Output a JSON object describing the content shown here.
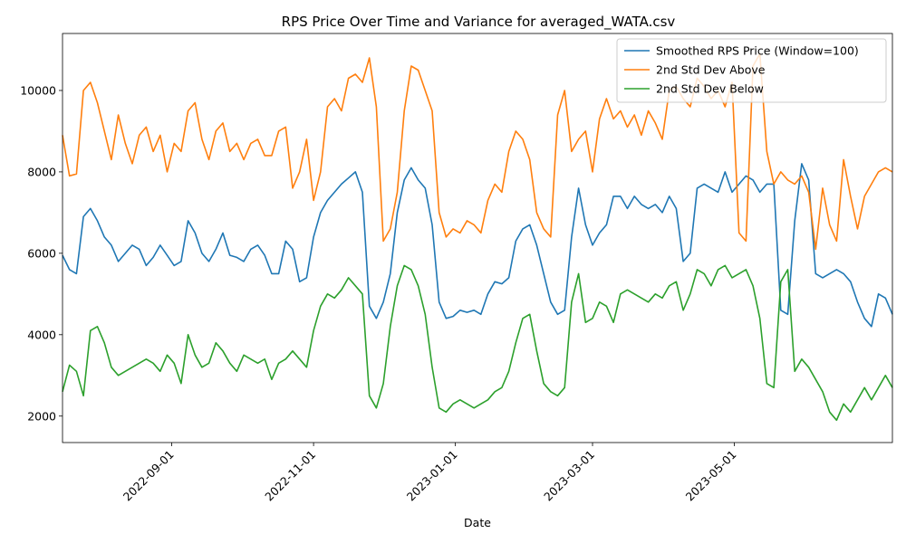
{
  "chart_data": {
    "type": "line",
    "title": "RPS Price Over Time and Variance for averaged_WATA.csv",
    "xlabel": "Date",
    "ylabel": "",
    "x_type": "date",
    "xlim": [
      "2022-07-16",
      "2023-07-08"
    ],
    "ylim": [
      1350,
      11400
    ],
    "xticks": [
      "2022-09-01",
      "2022-11-01",
      "2023-01-01",
      "2023-03-01",
      "2023-05-01"
    ],
    "yticks": [
      2000,
      4000,
      6000,
      8000,
      10000
    ],
    "grid": false,
    "legend_position": "top-right",
    "x": [
      "2022-07-16",
      "2022-07-19",
      "2022-07-22",
      "2022-07-25",
      "2022-07-28",
      "2022-07-31",
      "2022-08-03",
      "2022-08-06",
      "2022-08-09",
      "2022-08-12",
      "2022-08-15",
      "2022-08-18",
      "2022-08-21",
      "2022-08-24",
      "2022-08-27",
      "2022-08-30",
      "2022-09-02",
      "2022-09-05",
      "2022-09-08",
      "2022-09-11",
      "2022-09-14",
      "2022-09-17",
      "2022-09-20",
      "2022-09-23",
      "2022-09-26",
      "2022-09-29",
      "2022-10-02",
      "2022-10-05",
      "2022-10-08",
      "2022-10-11",
      "2022-10-14",
      "2022-10-17",
      "2022-10-20",
      "2022-10-23",
      "2022-10-26",
      "2022-10-29",
      "2022-11-01",
      "2022-11-04",
      "2022-11-07",
      "2022-11-10",
      "2022-11-13",
      "2022-11-16",
      "2022-11-19",
      "2022-11-22",
      "2022-11-25",
      "2022-11-28",
      "2022-12-01",
      "2022-12-04",
      "2022-12-07",
      "2022-12-10",
      "2022-12-13",
      "2022-12-16",
      "2022-12-19",
      "2022-12-22",
      "2022-12-25",
      "2022-12-28",
      "2022-12-31",
      "2023-01-03",
      "2023-01-06",
      "2023-01-09",
      "2023-01-12",
      "2023-01-15",
      "2023-01-18",
      "2023-01-21",
      "2023-01-24",
      "2023-01-27",
      "2023-01-30",
      "2023-02-02",
      "2023-02-05",
      "2023-02-08",
      "2023-02-11",
      "2023-02-14",
      "2023-02-17",
      "2023-02-20",
      "2023-02-23",
      "2023-02-26",
      "2023-03-01",
      "2023-03-04",
      "2023-03-07",
      "2023-03-10",
      "2023-03-13",
      "2023-03-16",
      "2023-03-19",
      "2023-03-22",
      "2023-03-25",
      "2023-03-28",
      "2023-03-31",
      "2023-04-03",
      "2023-04-06",
      "2023-04-09",
      "2023-04-12",
      "2023-04-15",
      "2023-04-18",
      "2023-04-21",
      "2023-04-24",
      "2023-04-27",
      "2023-04-30",
      "2023-05-03",
      "2023-05-06",
      "2023-05-09",
      "2023-05-12",
      "2023-05-15",
      "2023-05-18",
      "2023-05-21",
      "2023-05-24",
      "2023-05-27",
      "2023-05-30",
      "2023-06-02",
      "2023-06-05",
      "2023-06-08",
      "2023-06-11",
      "2023-06-14",
      "2023-06-17",
      "2023-06-20",
      "2023-06-23",
      "2023-06-26",
      "2023-06-29",
      "2023-07-02",
      "2023-07-05",
      "2023-07-08"
    ],
    "series": [
      {
        "name": "Smoothed RPS Price (Window=100)",
        "color": "#1f77b4",
        "values": [
          5950,
          5600,
          5500,
          6900,
          7100,
          6800,
          6400,
          6200,
          5800,
          6000,
          6200,
          6100,
          5700,
          5900,
          6200,
          5950,
          5700,
          5800,
          6800,
          6500,
          6000,
          5800,
          6100,
          6500,
          5950,
          5900,
          5800,
          6100,
          6200,
          5950,
          5500,
          5500,
          6300,
          6100,
          5300,
          5400,
          6400,
          7000,
          7300,
          7500,
          7700,
          7850,
          8000,
          7500,
          4700,
          4400,
          4800,
          5500,
          7000,
          7800,
          8100,
          7800,
          7600,
          6700,
          4800,
          4400,
          4450,
          4600,
          4550,
          4600,
          4500,
          5000,
          5300,
          5250,
          5400,
          6300,
          6600,
          6700,
          6200,
          5500,
          4800,
          4500,
          4600,
          6400,
          7600,
          6700,
          6200,
          6500,
          6700,
          7400,
          7400,
          7100,
          7400,
          7200,
          7100,
          7200,
          7000,
          7400,
          7100,
          5800,
          6000,
          7600,
          7700,
          7600,
          7500,
          8000,
          7500,
          7700,
          7900,
          7800,
          7500,
          7700,
          7700,
          4600,
          4500,
          6800,
          8200,
          7800,
          5500,
          5400,
          5500,
          5600,
          5500,
          5300,
          4800,
          4400,
          4200,
          5000,
          4900,
          4500
        ],
        "extra_note": ""
      },
      {
        "name": "2nd Std Dev Above",
        "color": "#ff7f0e",
        "values": [
          8900,
          7900,
          7950,
          10000,
          10200,
          9700,
          9000,
          8300,
          9400,
          8700,
          8200,
          8900,
          9100,
          8500,
          8900,
          8000,
          8700,
          8500,
          9500,
          9700,
          8800,
          8300,
          9000,
          9200,
          8500,
          8700,
          8300,
          8700,
          8800,
          8400,
          8400,
          9000,
          9100,
          7600,
          8000,
          8800,
          7300,
          8000,
          9600,
          9800,
          9500,
          10300,
          10400,
          10200,
          10800,
          9600,
          6300,
          6600,
          7500,
          9500,
          10600,
          10500,
          10000,
          9500,
          7000,
          6400,
          6600,
          6500,
          6800,
          6700,
          6500,
          7300,
          7700,
          7500,
          8500,
          9000,
          8800,
          8300,
          7000,
          6600,
          6400,
          9400,
          10000,
          8500,
          8800,
          9000,
          8000,
          9300,
          9800,
          9300,
          9500,
          9100,
          9400,
          8900,
          9500,
          9200,
          8800,
          10000,
          10100,
          9800,
          9600,
          10300,
          10100,
          9800,
          10000,
          9600,
          10200,
          6500,
          6300,
          10600,
          10900,
          8500,
          7700,
          8000,
          7800,
          7700,
          7900,
          7500,
          6100,
          7600,
          6700,
          6300,
          8300,
          7400,
          6600,
          7400,
          7700,
          8000,
          8100,
          8000
        ]
      },
      {
        "name": "2nd Std Dev Below",
        "color": "#2ca02c",
        "values": [
          2600,
          3250,
          3100,
          2500,
          4100,
          4200,
          3800,
          3200,
          3000,
          3100,
          3200,
          3300,
          3400,
          3300,
          3100,
          3500,
          3300,
          2800,
          4000,
          3500,
          3200,
          3300,
          3800,
          3600,
          3300,
          3100,
          3500,
          3400,
          3300,
          3400,
          2900,
          3300,
          3400,
          3600,
          3400,
          3200,
          4100,
          4700,
          5000,
          4900,
          5100,
          5400,
          5200,
          5000,
          2500,
          2200,
          2800,
          4200,
          5200,
          5700,
          5600,
          5200,
          4500,
          3200,
          2200,
          2100,
          2300,
          2400,
          2300,
          2200,
          2300,
          2400,
          2600,
          2700,
          3100,
          3800,
          4400,
          4500,
          3600,
          2800,
          2600,
          2500,
          2700,
          4800,
          5500,
          4300,
          4400,
          4800,
          4700,
          4300,
          5000,
          5100,
          5000,
          4900,
          4800,
          5000,
          4900,
          5200,
          5300,
          4600,
          5000,
          5600,
          5500,
          5200,
          5600,
          5700,
          5400,
          5500,
          5600,
          5200,
          4400,
          2800,
          2700,
          5300,
          5600,
          3100,
          3400,
          3200,
          2900,
          2600,
          2100,
          1900,
          2300,
          2100,
          2400,
          2700,
          2400,
          2700,
          3000,
          2700
        ]
      }
    ]
  }
}
